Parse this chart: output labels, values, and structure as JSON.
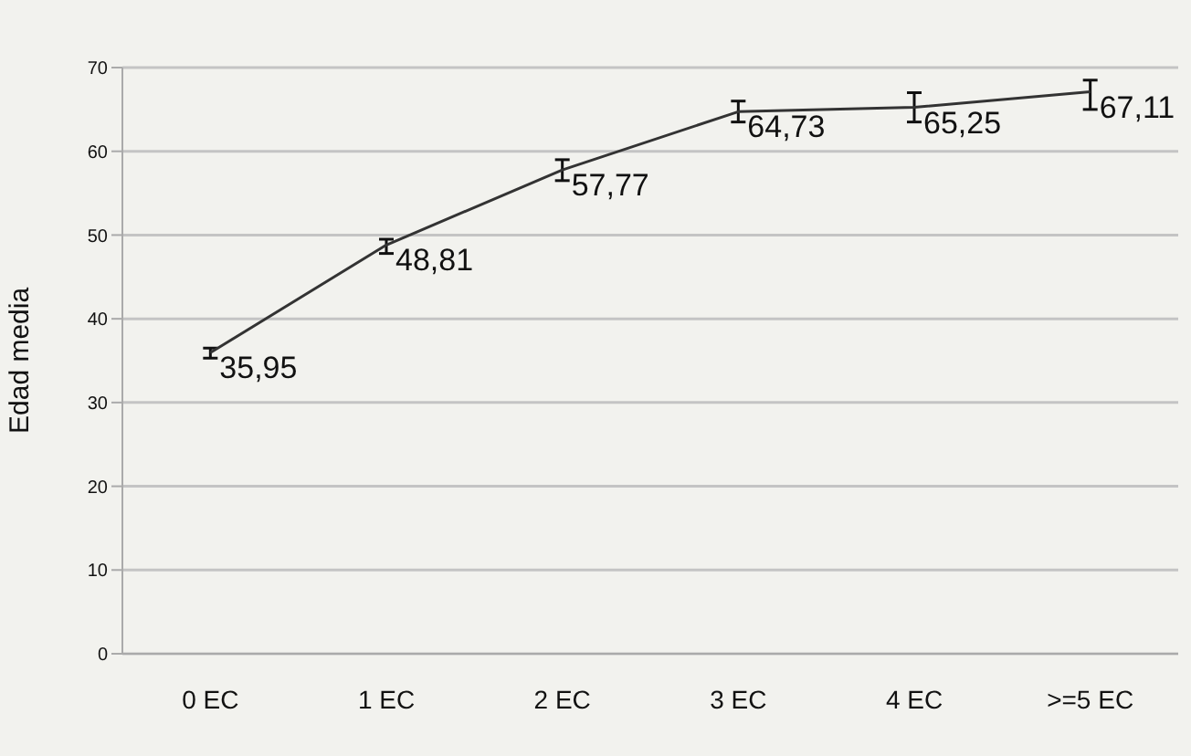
{
  "chart_data": {
    "type": "line",
    "ylabel": "Edad media",
    "categories": [
      "0 EC",
      "1 EC",
      "2 EC",
      "3 EC",
      "4 EC",
      ">=5 EC"
    ],
    "series": [
      {
        "color": "#333333",
        "values": [
          35.95,
          48.81,
          57.77,
          64.73,
          65.25,
          67.11
        ],
        "errors": [
          [
            35.3,
            36.5
          ],
          [
            47.8,
            49.5
          ],
          [
            56.5,
            59
          ],
          [
            63.5,
            66
          ],
          [
            63.5,
            67
          ],
          [
            65,
            68.5
          ]
        ],
        "value_labels": [
          "35,95",
          "48,81",
          "57,77",
          "64,73",
          "65,25",
          "67,11"
        ]
      }
    ],
    "ylim": [
      0,
      70
    ],
    "yticks": [
      0,
      10,
      20,
      30,
      40,
      50,
      60,
      70
    ],
    "grid": "y",
    "marker": "none",
    "line_style": "solid"
  }
}
